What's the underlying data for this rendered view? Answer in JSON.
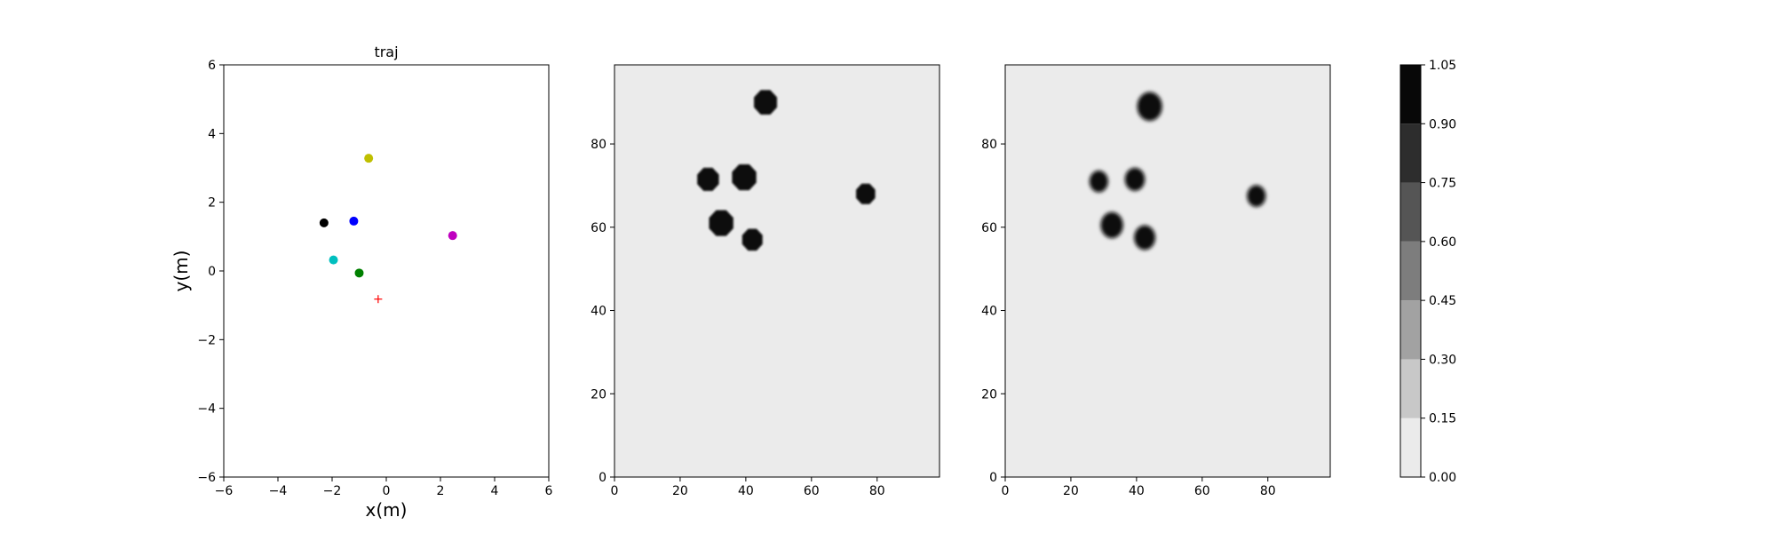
{
  "chart_data": [
    {
      "type": "scatter",
      "title": "traj",
      "xlabel": "x(m)",
      "ylabel": "y(m)",
      "xlim": [
        -6,
        6
      ],
      "ylim": [
        -6,
        6
      ],
      "xticks": [
        -6,
        -4,
        -2,
        0,
        2,
        4,
        6
      ],
      "yticks": [
        -6,
        -4,
        -2,
        0,
        2,
        4,
        6
      ],
      "grid": false,
      "points": [
        {
          "x": -0.65,
          "y": 3.28,
          "color": "#bfbf00",
          "marker": "circle"
        },
        {
          "x": -2.3,
          "y": 1.4,
          "color": "#000000",
          "marker": "circle"
        },
        {
          "x": -1.2,
          "y": 1.45,
          "color": "#0000ff",
          "marker": "circle"
        },
        {
          "x": 2.45,
          "y": 1.03,
          "color": "#bf00bf",
          "marker": "circle"
        },
        {
          "x": -1.95,
          "y": 0.32,
          "color": "#00bfbf",
          "marker": "circle"
        },
        {
          "x": -1.0,
          "y": -0.06,
          "color": "#008000",
          "marker": "circle"
        },
        {
          "x": -0.3,
          "y": -0.82,
          "color": "#ff0000",
          "marker": "plus"
        }
      ]
    },
    {
      "type": "heatmap",
      "xlim": [
        0,
        99
      ],
      "ylim": [
        0,
        99
      ],
      "xticks": [
        0,
        20,
        40,
        60,
        80
      ],
      "yticks": [
        0,
        20,
        40,
        60,
        80
      ],
      "background_value": 0.0,
      "blobs": [
        {
          "x": 46,
          "y": 90,
          "r": 3.6,
          "value": 1.0
        },
        {
          "x": 28.5,
          "y": 71.5,
          "r": 3.4,
          "value": 1.0
        },
        {
          "x": 39.5,
          "y": 72,
          "r": 3.8,
          "value": 1.0
        },
        {
          "x": 76.5,
          "y": 68,
          "r": 3.0,
          "value": 1.0
        },
        {
          "x": 32.5,
          "y": 61,
          "r": 3.8,
          "value": 1.0
        },
        {
          "x": 42,
          "y": 57,
          "r": 3.2,
          "value": 1.0
        }
      ]
    },
    {
      "type": "heatmap",
      "xlim": [
        0,
        99
      ],
      "ylim": [
        0,
        99
      ],
      "xticks": [
        0,
        20,
        40,
        60,
        80
      ],
      "yticks": [
        0,
        20,
        40,
        60,
        80
      ],
      "background_value": 0.0,
      "blobs": [
        {
          "x": 44,
          "y": 89,
          "r": 4.0,
          "value": 1.0
        },
        {
          "x": 28.5,
          "y": 71,
          "r": 3.0,
          "value": 1.0
        },
        {
          "x": 39.5,
          "y": 71.5,
          "r": 3.2,
          "value": 1.0
        },
        {
          "x": 76.5,
          "y": 67.5,
          "r": 3.0,
          "value": 1.0
        },
        {
          "x": 32.5,
          "y": 60.5,
          "r": 3.6,
          "value": 1.0
        },
        {
          "x": 42.5,
          "y": 57.5,
          "r": 3.4,
          "value": 1.0
        }
      ]
    }
  ],
  "colorbar": {
    "levels": [
      0.0,
      0.15,
      0.3,
      0.45,
      0.6,
      0.75,
      0.9,
      1.05
    ],
    "tick_labels": [
      "0.00",
      "0.15",
      "0.30",
      "0.45",
      "0.60",
      "0.75",
      "0.90",
      "1.05"
    ],
    "colors": [
      "#ebebeb",
      "#c8c8c8",
      "#a2a2a2",
      "#7d7d7d",
      "#555555",
      "#2d2d2d",
      "#080808"
    ]
  }
}
